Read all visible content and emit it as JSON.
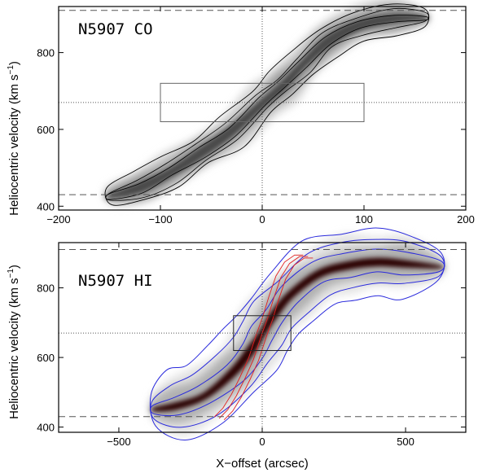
{
  "chart_data": [
    {
      "type": "contour",
      "panel_title": "N5907 CO",
      "xlabel": "",
      "ylabel": "Heliocentric velocity (km s",
      "ylabel_sup": "−1",
      "ylabel_close": ")",
      "xlim": [
        -200,
        200
      ],
      "ylim": [
        390,
        920
      ],
      "xticks": [
        -200,
        -100,
        0,
        100,
        200
      ],
      "xtick_labels": [
        "−200",
        "−100",
        "0",
        "100",
        "200"
      ],
      "yticks": [
        400,
        600,
        800
      ],
      "ytick_labels": [
        "400",
        "600",
        "800"
      ],
      "hlines_dashed": [
        430,
        910
      ],
      "hline_dotted": 670,
      "vline_dotted": 0,
      "box": {
        "x": [
          -100,
          100
        ],
        "y": [
          620,
          720
        ]
      },
      "emission_ridge": [
        {
          "x": -150,
          "v": 425
        },
        {
          "x": -120,
          "v": 450
        },
        {
          "x": -90,
          "v": 490
        },
        {
          "x": -60,
          "v": 540
        },
        {
          "x": -30,
          "v": 595
        },
        {
          "x": 0,
          "v": 670
        },
        {
          "x": 20,
          "v": 715
        },
        {
          "x": 40,
          "v": 770
        },
        {
          "x": 65,
          "v": 830
        },
        {
          "x": 95,
          "v": 870
        },
        {
          "x": 130,
          "v": 890
        },
        {
          "x": 160,
          "v": 890
        }
      ]
    },
    {
      "type": "contour",
      "panel_title": "N5907 HI",
      "xlabel": "X−offset (arcsec)",
      "ylabel": "Heliocentric velocity (km s",
      "ylabel_sup": "−1",
      "ylabel_close": ")",
      "xlim": [
        -710,
        710
      ],
      "ylim": [
        385,
        930
      ],
      "xticks": [
        -500,
        0,
        500
      ],
      "xtick_labels": [
        "−500",
        "0",
        "500"
      ],
      "yticks": [
        400,
        600,
        800
      ],
      "ytick_labels": [
        "400",
        "600",
        "800"
      ],
      "hlines_dashed": [
        430,
        910
      ],
      "hline_dotted": 670,
      "vline_dotted": 0,
      "box": {
        "x": [
          -100,
          100
        ],
        "y": [
          620,
          720
        ]
      },
      "emission_ridge": [
        {
          "x": -380,
          "v": 450
        },
        {
          "x": -300,
          "v": 460
        },
        {
          "x": -200,
          "v": 490
        },
        {
          "x": -100,
          "v": 560
        },
        {
          "x": -40,
          "v": 620
        },
        {
          "x": 0,
          "v": 670
        },
        {
          "x": 40,
          "v": 720
        },
        {
          "x": 100,
          "v": 780
        },
        {
          "x": 200,
          "v": 840
        },
        {
          "x": 300,
          "v": 865
        },
        {
          "x": 400,
          "v": 875
        },
        {
          "x": 500,
          "v": 870
        },
        {
          "x": 620,
          "v": 860
        }
      ]
    }
  ]
}
